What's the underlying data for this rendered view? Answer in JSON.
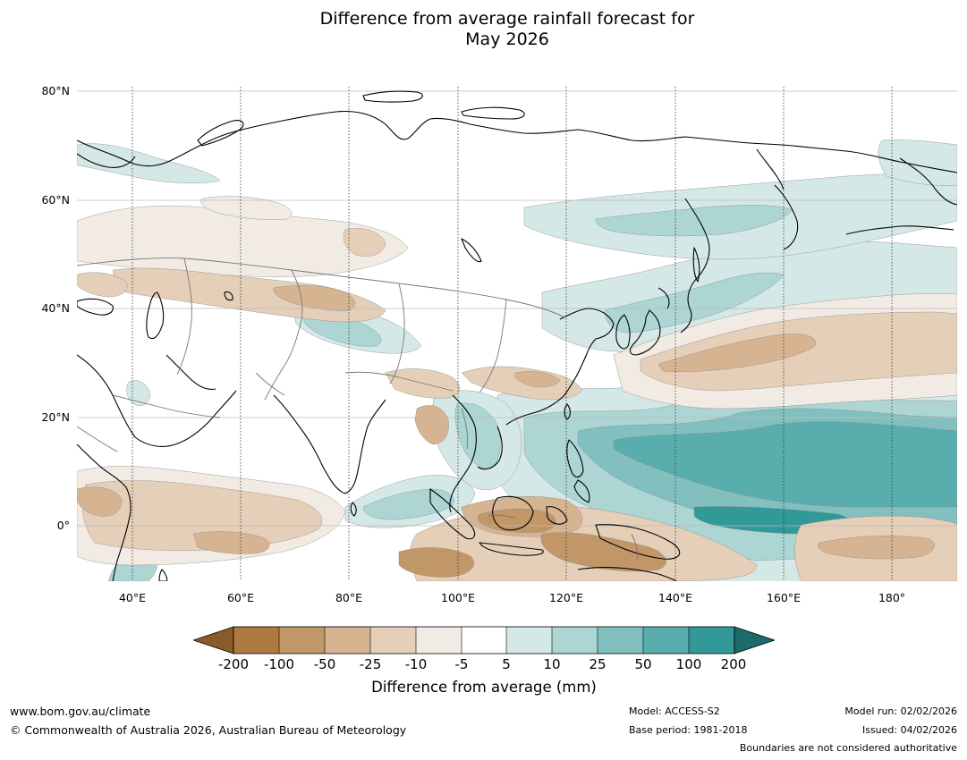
{
  "title": {
    "line1": "Difference from average rainfall forecast for",
    "line2": "May 2026"
  },
  "map": {
    "lat_labels": [
      "80°N",
      "60°N",
      "40°N",
      "20°N",
      "0°"
    ],
    "lon_labels": [
      "40°E",
      "60°E",
      "80°E",
      "100°E",
      "120°E",
      "140°E",
      "160°E",
      "180°"
    ],
    "palette": {
      "dry_extreme": "#8b5a2b",
      "dry_200": "#ad7a40",
      "dry_100": "#c29768",
      "dry_50": "#d6b491",
      "dry_25": "#e5cfb8",
      "dry_10": "#f2ebe4",
      "neutral": "#ffffff",
      "wet_10": "#d4e8e7",
      "wet_25": "#acd5d4",
      "wet_50": "#82c0c0",
      "wet_100": "#5aadad",
      "wet_200": "#319a99",
      "wet_extreme": "#1c6b6a"
    }
  },
  "colorbar": {
    "ticks": [
      "-200",
      "-100",
      "-50",
      "-25",
      "-10",
      "-5",
      "5",
      "10",
      "25",
      "50",
      "100",
      "200"
    ],
    "label": "Difference from average (mm)"
  },
  "footer": {
    "website": "www.bom.gov.au/climate",
    "copyright": "© Commonwealth of Australia 2026, Australian Bureau of Meteorology",
    "model": "Model: ACCESS-S2",
    "base_period": "Base period: 1981-2018",
    "model_run": "Model run: 02/02/2026",
    "issued": "Issued: 04/02/2026",
    "disclaimer": "Boundaries are not considered authoritative"
  }
}
